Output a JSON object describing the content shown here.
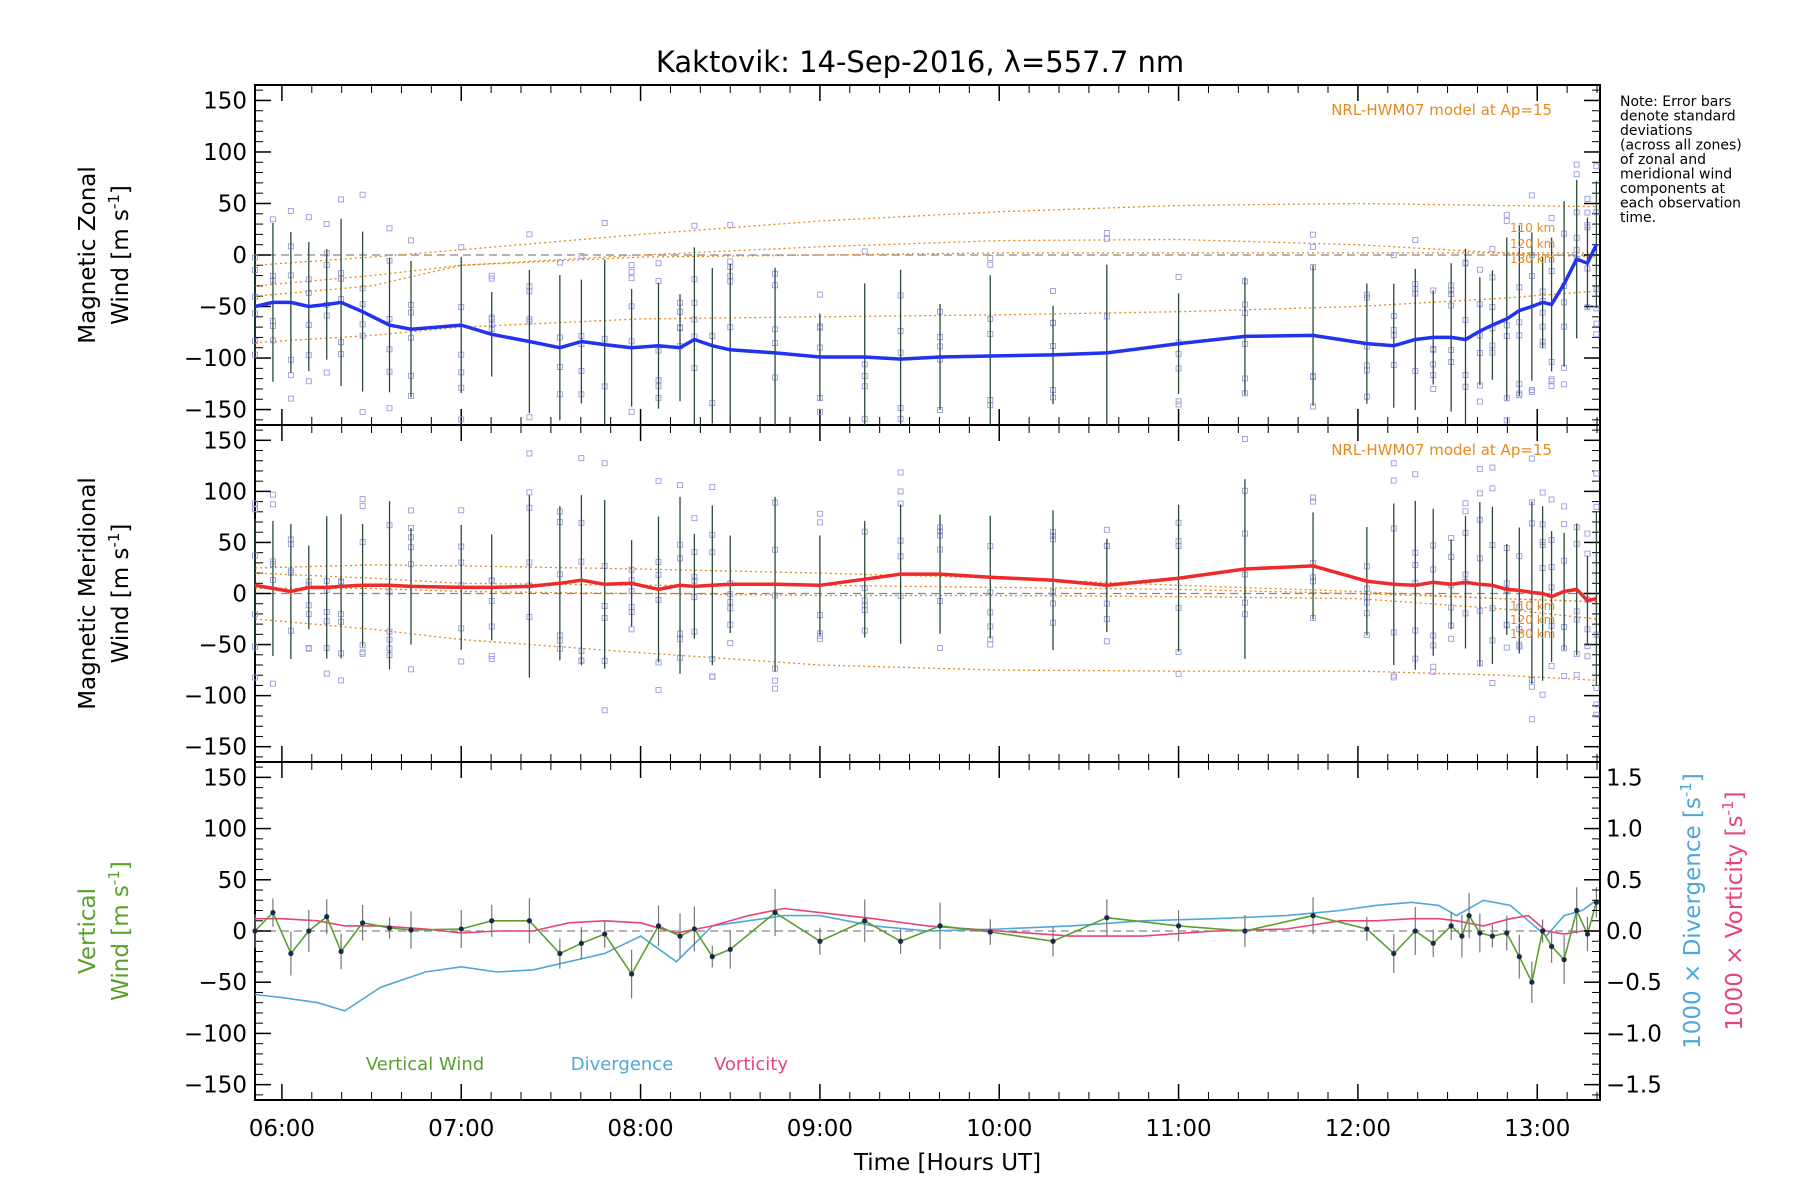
{
  "title": "Kaktovik: 14-Sep-2016, λ=557.7 nm",
  "note": [
    "Note: Error bars",
    "denote standard",
    "deviations",
    "(across all zones)",
    "of zonal and",
    "meridional wind",
    "components at",
    "each observation",
    "time."
  ],
  "colors": {
    "zonal": "#2233ee",
    "meridional": "#ee2a2a",
    "vertical": "#5aa02c",
    "divergence": "#4ea8d8",
    "vorticity": "#e8437a",
    "model": "#e8891e",
    "scatter": "#9a9ae0"
  },
  "chart_data": [
    {
      "type": "line",
      "panel": "zonal",
      "ylabel": [
        "Magnetic Zonal",
        "Wind [m s",
        "-1",
        "]"
      ],
      "model_label": "NRL-HWM07 model at Ap=15",
      "km_labels": [
        "110 km",
        "120 km",
        "130 km"
      ],
      "yticks": [
        "150",
        "100",
        "50",
        "0",
        "−50",
        "−100",
        "−150"
      ],
      "ylim": [
        -165,
        165
      ],
      "x": [
        5.85,
        5.95,
        6.05,
        6.15,
        6.25,
        6.33,
        6.45,
        6.6,
        6.72,
        7.0,
        7.17,
        7.38,
        7.55,
        7.67,
        7.8,
        7.95,
        8.1,
        8.22,
        8.3,
        8.4,
        8.5,
        8.75,
        9.0,
        9.25,
        9.45,
        9.67,
        9.95,
        10.3,
        10.6,
        11.0,
        11.37,
        11.75,
        12.05,
        12.2,
        12.32,
        12.42,
        12.52,
        12.6,
        12.68,
        12.75,
        12.83,
        12.9,
        12.97,
        13.03,
        13.08,
        13.15,
        13.22,
        13.28,
        13.33
      ],
      "series": [
        {
          "values": [
            -50,
            -46,
            -46,
            -50,
            -48,
            -46,
            -55,
            -68,
            -72,
            -68,
            -77,
            -84,
            -90,
            -84,
            -87,
            -90,
            -88,
            -90,
            -82,
            -88,
            -92,
            -95,
            -99,
            -99,
            -101,
            -99,
            -98,
            -97,
            -95,
            -86,
            -79,
            -78,
            -86,
            -88,
            -82,
            -80,
            -80,
            -82,
            -74,
            -68,
            -62,
            -54,
            -50,
            -46,
            -48,
            -28,
            -4,
            -8,
            10
          ]
        }
      ],
      "model": {
        "x": [
          5.85,
          6.5,
          7.0,
          8.0,
          9.0,
          10.0,
          11.0,
          12.0,
          12.8,
          13.33
        ],
        "lines": [
          [
            -10,
            -2,
            5,
            20,
            33,
            42,
            48,
            50,
            48,
            47
          ],
          [
            -30,
            -20,
            -10,
            0,
            8,
            14,
            15,
            10,
            2,
            -2
          ],
          [
            -40,
            -30,
            -10,
            -2,
            0,
            2,
            2,
            2,
            2,
            2
          ],
          [
            -85,
            -78,
            -70,
            -62,
            -60,
            -58,
            -55,
            -50,
            -42,
            -35
          ]
        ]
      }
    },
    {
      "type": "line",
      "panel": "meridional",
      "ylabel": [
        "Magnetic Meridional",
        "Wind [m s",
        "-1",
        "]"
      ],
      "model_label": "NRL-HWM07 model at Ap=15",
      "km_labels": [
        "110 km",
        "120 km",
        "130 km"
      ],
      "yticks": [
        "150",
        "100",
        "50",
        "0",
        "−50",
        "−100",
        "−150"
      ],
      "ylim": [
        -165,
        165
      ],
      "x": [
        5.85,
        5.95,
        6.05,
        6.15,
        6.25,
        6.33,
        6.45,
        6.6,
        6.72,
        7.0,
        7.17,
        7.38,
        7.55,
        7.67,
        7.8,
        7.95,
        8.1,
        8.22,
        8.3,
        8.4,
        8.5,
        8.75,
        9.0,
        9.25,
        9.45,
        9.67,
        9.95,
        10.3,
        10.6,
        11.0,
        11.37,
        11.75,
        12.05,
        12.2,
        12.32,
        12.42,
        12.52,
        12.6,
        12.68,
        12.75,
        12.83,
        12.9,
        12.97,
        13.03,
        13.08,
        13.15,
        13.22,
        13.28,
        13.33
      ],
      "series": [
        {
          "values": [
            8,
            5,
            2,
            6,
            6,
            7,
            8,
            8,
            7,
            6,
            6,
            7,
            10,
            13,
            9,
            10,
            4,
            8,
            7,
            8,
            9,
            9,
            8,
            14,
            19,
            19,
            16,
            13,
            8,
            15,
            24,
            27,
            12,
            9,
            8,
            11,
            9,
            11,
            9,
            8,
            4,
            3,
            1,
            0,
            -3,
            2,
            4,
            -7,
            -5
          ]
        }
      ],
      "model": {
        "x": [
          5.85,
          6.5,
          7.0,
          8.0,
          9.0,
          10.0,
          11.0,
          12.0,
          12.8,
          13.33
        ],
        "lines": [
          [
            25,
            28,
            27,
            24,
            20,
            15,
            8,
            2,
            -5,
            -8
          ],
          [
            20,
            15,
            10,
            8,
            8,
            6,
            4,
            0,
            -5,
            -8
          ],
          [
            -25,
            -35,
            -45,
            -58,
            -70,
            -75,
            -76,
            -76,
            -80,
            -85
          ],
          [
            5,
            5,
            2,
            0,
            -2,
            -2,
            -3,
            -5,
            -15,
            -25
          ]
        ]
      }
    },
    {
      "type": "line",
      "panel": "vertical",
      "ylabel": [
        "Vertical",
        "Wind [m s",
        "-1",
        "]"
      ],
      "right_label_divergence": [
        "1000 × Divergence [s",
        "-1",
        "]"
      ],
      "right_label_vorticity": [
        "1000 × Vorticity [s",
        "-1",
        "]"
      ],
      "yticks": [
        "150",
        "100",
        "50",
        "0",
        "−50",
        "−100",
        "−150"
      ],
      "right_ticks": [
        "1.5",
        "1.0",
        "0.5",
        "0.0",
        "−0.5",
        "−1.0",
        "−1.5"
      ],
      "ylim": [
        -165,
        165
      ],
      "right_ylim": [
        -1.65,
        1.65
      ],
      "xticks": [
        "06:00",
        "07:00",
        "08:00",
        "09:00",
        "10:00",
        "11:00",
        "12:00",
        "13:00"
      ],
      "xlabel": "Time [Hours UT]",
      "legend": [
        "Vertical Wind",
        "Divergence",
        "Vorticity"
      ],
      "series": [
        {
          "name": "Vertical Wind",
          "x": [
            5.85,
            5.95,
            6.05,
            6.15,
            6.25,
            6.33,
            6.45,
            6.6,
            6.72,
            7.0,
            7.17,
            7.38,
            7.55,
            7.67,
            7.8,
            7.95,
            8.1,
            8.22,
            8.3,
            8.4,
            8.5,
            8.75,
            9.0,
            9.25,
            9.45,
            9.67,
            9.95,
            10.3,
            10.6,
            11.0,
            11.37,
            11.75,
            12.05,
            12.2,
            12.32,
            12.42,
            12.52,
            12.58,
            12.62,
            12.68,
            12.75,
            12.83,
            12.9,
            12.97,
            13.03,
            13.08,
            13.15,
            13.22,
            13.28,
            13.33
          ],
          "values": [
            0,
            18,
            -22,
            0,
            14,
            -20,
            8,
            3,
            1,
            2,
            10,
            10,
            -22,
            -12,
            -3,
            -42,
            5,
            -5,
            2,
            -25,
            -18,
            18,
            -10,
            10,
            -10,
            5,
            -1,
            -10,
            13,
            5,
            0,
            15,
            2,
            -22,
            0,
            -12,
            5,
            -5,
            15,
            -2,
            -5,
            -2,
            -25,
            -50,
            0,
            -15,
            -28,
            20,
            -3,
            28
          ]
        },
        {
          "name": "Divergence",
          "x": [
            5.85,
            6.0,
            6.2,
            6.35,
            6.55,
            6.8,
            7.0,
            7.2,
            7.4,
            7.6,
            7.8,
            8.0,
            8.2,
            8.4,
            8.6,
            8.8,
            9.0,
            9.3,
            9.6,
            10.0,
            10.4,
            10.8,
            11.2,
            11.6,
            11.9,
            12.1,
            12.3,
            12.45,
            12.55,
            12.7,
            12.85,
            12.95,
            13.05,
            13.15,
            13.25,
            13.33
          ],
          "values": [
            -0.62,
            -0.65,
            -0.7,
            -0.78,
            -0.55,
            -0.4,
            -0.35,
            -0.4,
            -0.38,
            -0.3,
            -0.22,
            -0.05,
            -0.3,
            0.05,
            0.1,
            0.15,
            0.15,
            0.05,
            0.0,
            0.02,
            0.05,
            0.1,
            0.12,
            0.15,
            0.2,
            0.25,
            0.28,
            0.25,
            0.15,
            0.3,
            0.25,
            0.1,
            -0.05,
            0.15,
            0.2,
            0.3
          ]
        },
        {
          "name": "Vorticity",
          "x": [
            5.85,
            6.0,
            6.2,
            6.35,
            6.55,
            6.8,
            7.0,
            7.2,
            7.4,
            7.6,
            7.8,
            8.0,
            8.2,
            8.4,
            8.6,
            8.8,
            9.0,
            9.3,
            9.6,
            10.0,
            10.4,
            10.8,
            11.2,
            11.6,
            11.9,
            12.1,
            12.3,
            12.45,
            12.55,
            12.7,
            12.85,
            12.95,
            13.05,
            13.15,
            13.25,
            13.33
          ],
          "values": [
            0.12,
            0.12,
            0.1,
            0.05,
            0.05,
            0.02,
            -0.02,
            0.0,
            0.0,
            0.08,
            0.1,
            0.08,
            -0.02,
            0.05,
            0.15,
            0.22,
            0.18,
            0.12,
            0.05,
            0.0,
            -0.05,
            -0.05,
            0.0,
            0.02,
            0.1,
            0.1,
            0.12,
            0.12,
            0.1,
            0.05,
            0.12,
            0.15,
            0.0,
            -0.03,
            0.0,
            0.0
          ]
        }
      ]
    }
  ]
}
